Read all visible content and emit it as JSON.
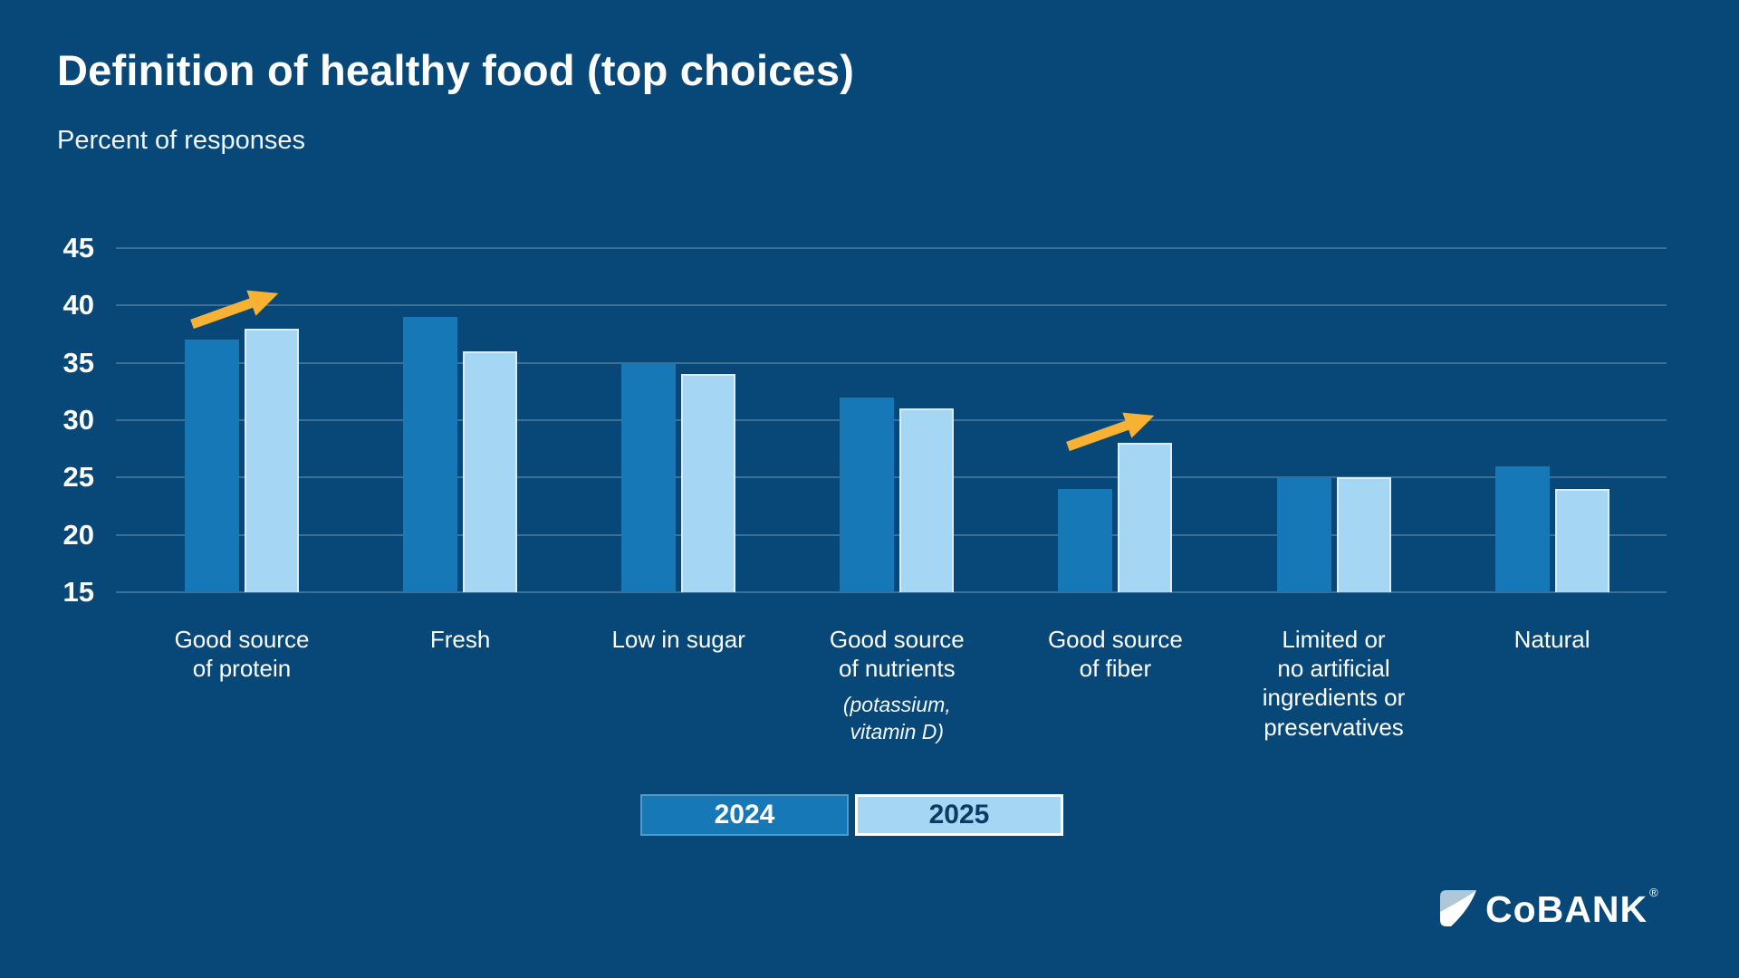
{
  "slide": {
    "title": "Definition of healthy food (top choices)",
    "subtitle": "Percent of responses"
  },
  "chart_data": {
    "type": "bar",
    "title": "Definition of healthy food (top choices)",
    "subtitle": "Percent of responses",
    "categories": [
      {
        "label": "Good source\nof protein",
        "note": ""
      },
      {
        "label": "Fresh",
        "note": ""
      },
      {
        "label": "Low in sugar",
        "note": ""
      },
      {
        "label": "Good source\nof nutrients",
        "note": "(potassium,\nvitamin D)"
      },
      {
        "label": "Good source\nof fiber",
        "note": ""
      },
      {
        "label": "Limited or\nno artificial\ningredients or\npreservatives",
        "note": ""
      },
      {
        "label": "Natural",
        "note": ""
      }
    ],
    "series": [
      {
        "name": "2024",
        "color": "#1678b6",
        "values": [
          37,
          39,
          35,
          32,
          24,
          25,
          26
        ]
      },
      {
        "name": "2025",
        "color": "#a5d7f4",
        "values": [
          38,
          36,
          34,
          31,
          28,
          25,
          24
        ]
      }
    ],
    "y_axis": {
      "min": 15,
      "max": 45,
      "ticks": [
        45,
        40,
        35,
        30,
        25,
        20,
        15
      ]
    },
    "grid": "horizontal-on",
    "legend_position": "bottom-center",
    "annotations": [
      {
        "type": "increase-arrow",
        "category": "Good source of protein",
        "color": "#f7b234"
      },
      {
        "type": "increase-arrow",
        "category": "Good source of fiber",
        "color": "#f7b234"
      }
    ]
  },
  "legend": {
    "items": [
      {
        "label": "2024"
      },
      {
        "label": "2025"
      }
    ]
  },
  "branding": {
    "logo_text": "CoBANK",
    "registered_mark": "®"
  },
  "colors": {
    "background": "#074878",
    "bar_2024": "#1678b6",
    "bar_2025": "#a5d7f4",
    "gridline": "rgba(255,255,255,0.22)",
    "arrow": "#f7b234",
    "text": "#ffffff",
    "legend_2025_text": "#0c3c63",
    "logo_mark_slate": "#afc7d8"
  }
}
